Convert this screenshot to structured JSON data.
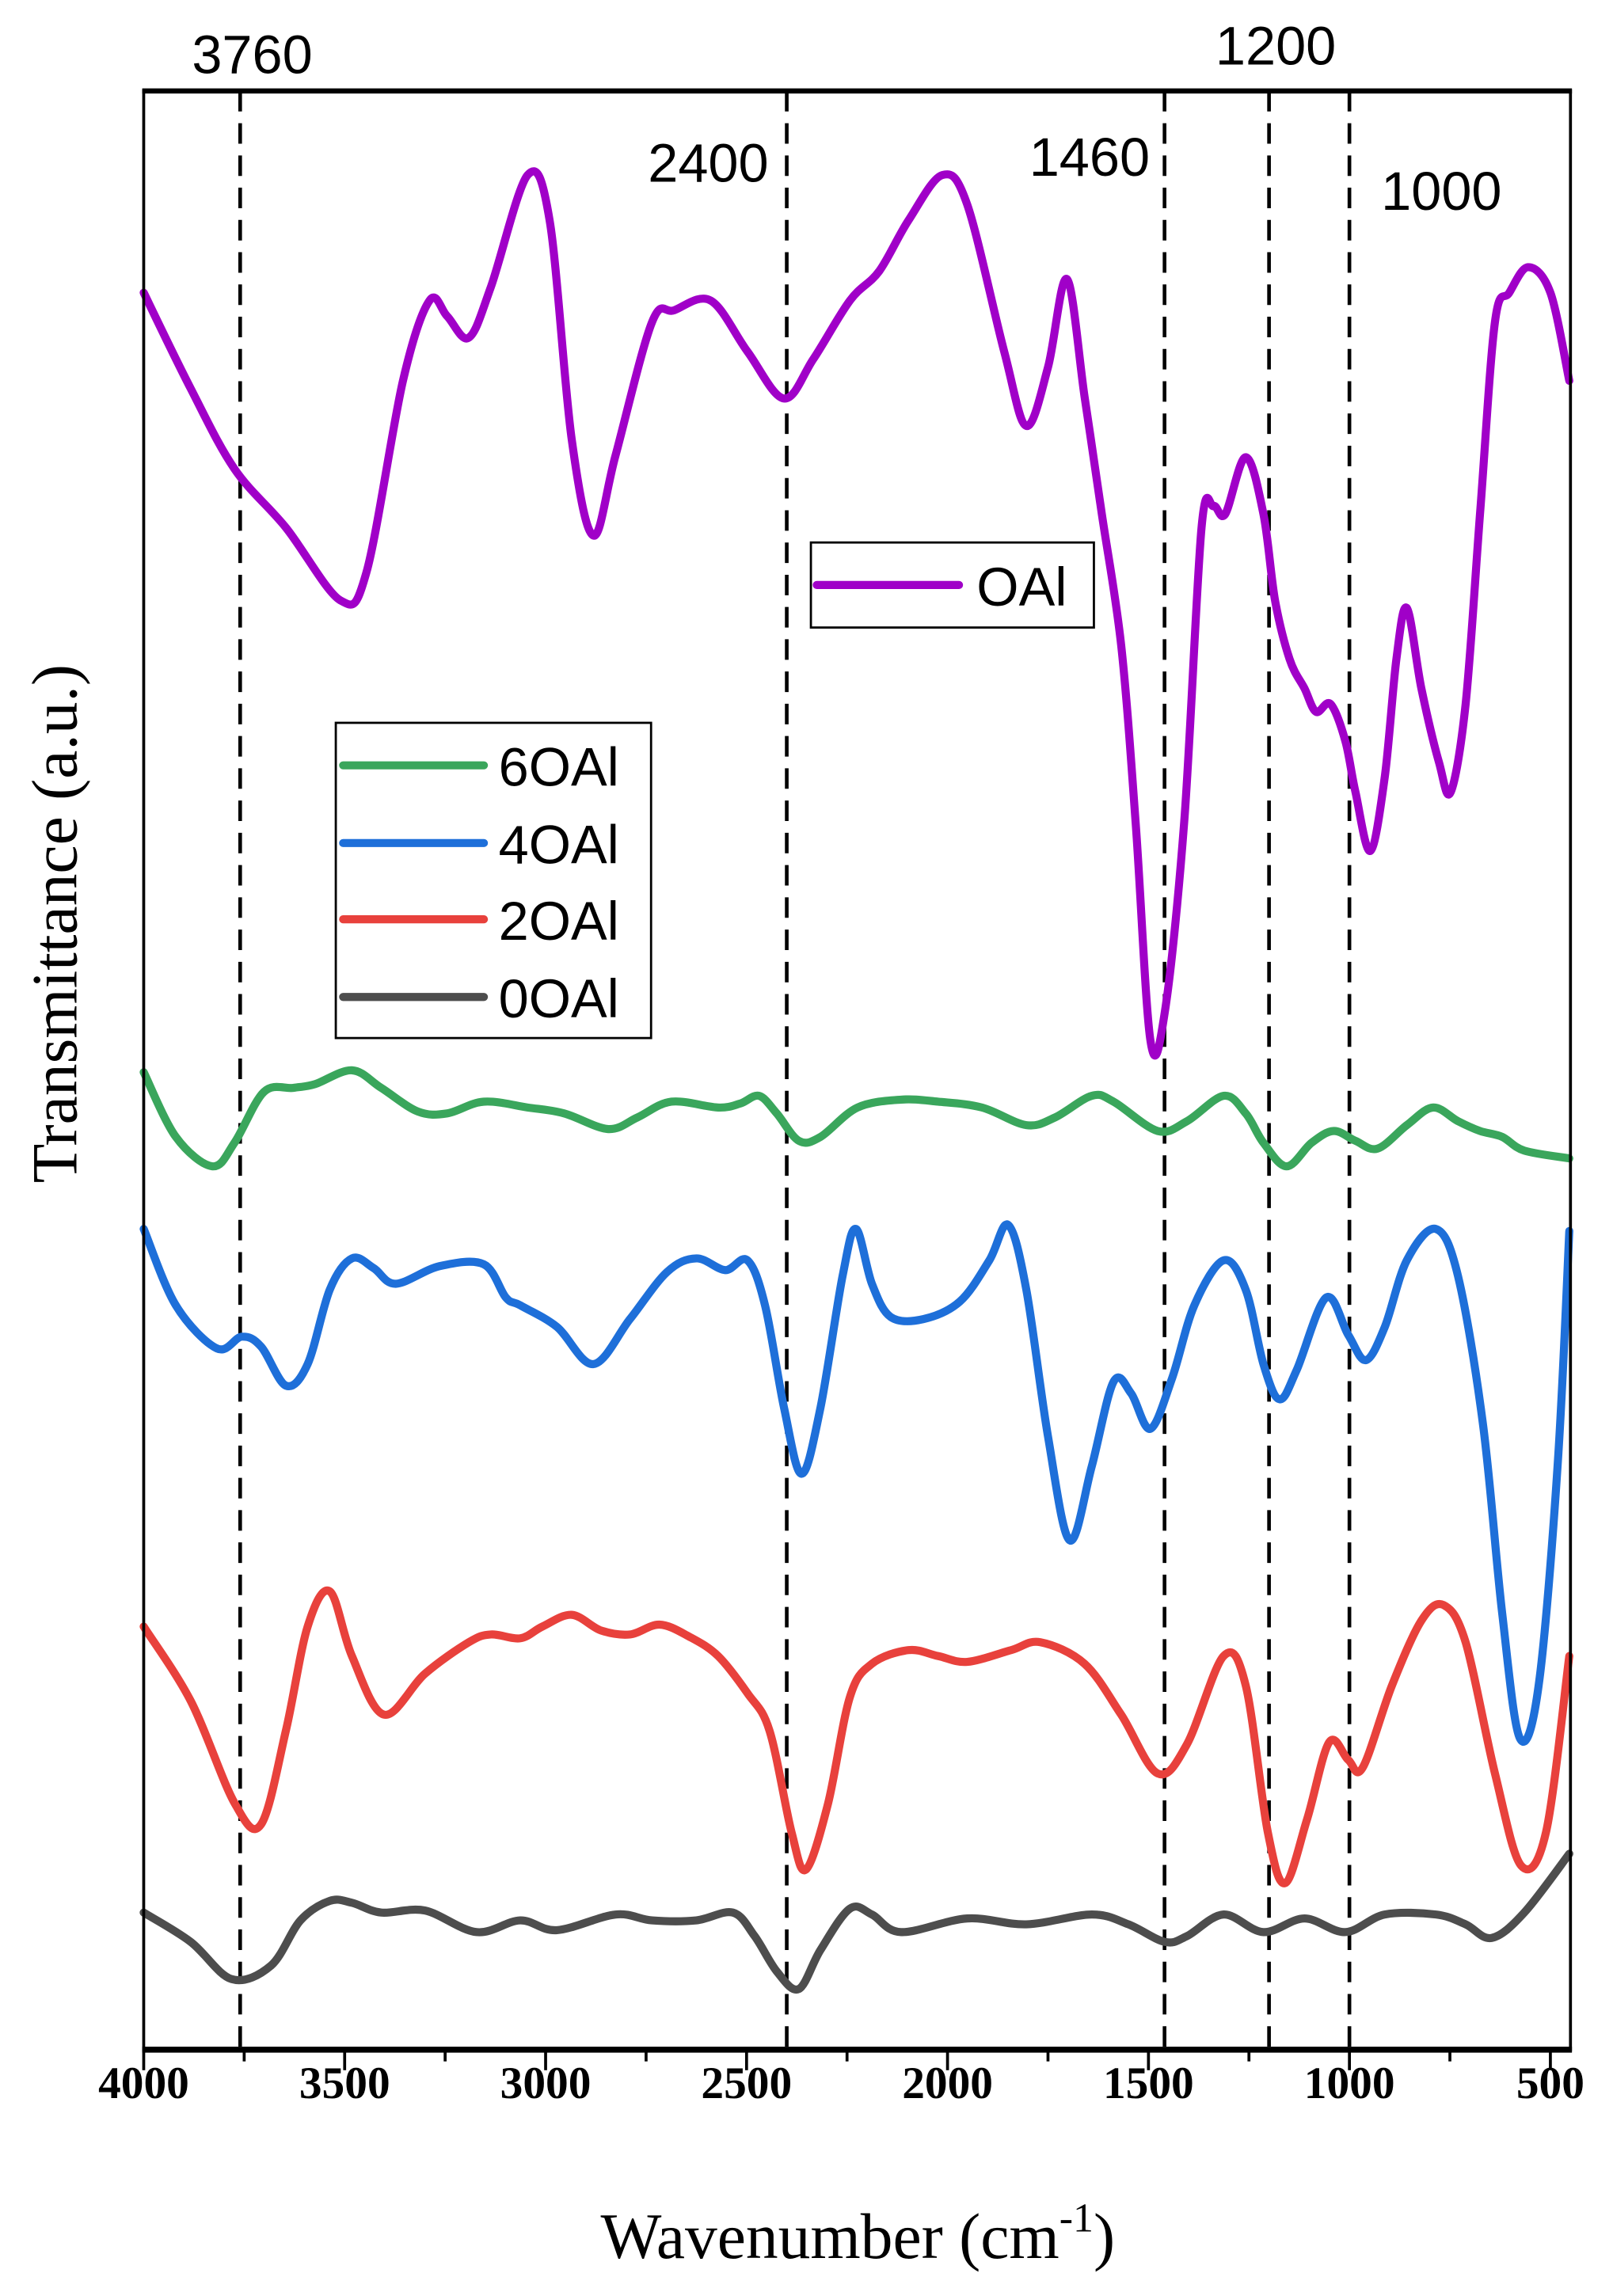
{
  "chart_data": {
    "type": "line",
    "title": "",
    "xlabel": "Wavenumber (cm",
    "xlabel_sup": "-1",
    "xlabel_close": ")",
    "ylabel": "Transmittance (a.u.)",
    "xlim": [
      4000,
      450
    ],
    "ylim": [
      0,
      100
    ],
    "x_reversed": true,
    "grid": false,
    "y_ticks_shown": false,
    "x_ticks": [
      4000,
      3500,
      3000,
      2500,
      2000,
      1500,
      1000,
      500
    ],
    "x_tick_labels": [
      "4000",
      "3500",
      "3000",
      "2500",
      "2000",
      "1500",
      "1000",
      "500"
    ],
    "reference_lines": [
      {
        "x": 3760,
        "label": "3760",
        "style": "dashed"
      },
      {
        "x": 2400,
        "label": "2400",
        "style": "dashed"
      },
      {
        "x": 1460,
        "label": "1460",
        "style": "dashed"
      },
      {
        "x": 1200,
        "label": "1200",
        "style": "dashed"
      },
      {
        "x": 1000,
        "label": "1000",
        "style": "dashed"
      }
    ],
    "legends": [
      {
        "placement": "center",
        "entries": [
          "OAl"
        ]
      },
      {
        "placement": "center-left",
        "entries": [
          "6OAl",
          "4OAl",
          "2OAl",
          "0OAl"
        ]
      }
    ],
    "series": [
      {
        "name": "OAl",
        "color": "#a000c8",
        "points": [
          [
            4000,
            89.7
          ],
          [
            3883,
            84.8
          ],
          [
            3774,
            80.7
          ],
          [
            3646,
            77.7
          ],
          [
            3511,
            74.0
          ],
          [
            3446,
            75.4
          ],
          [
            3355,
            85.2
          ],
          [
            3289,
            89.3
          ],
          [
            3245,
            88.5
          ],
          [
            3191,
            87.4
          ],
          [
            3136,
            90.0
          ],
          [
            3045,
            95.7
          ],
          [
            2990,
            93.4
          ],
          [
            2935,
            82.2
          ],
          [
            2881,
            77.3
          ],
          [
            2826,
            81.4
          ],
          [
            2735,
            88.2
          ],
          [
            2680,
            88.8
          ],
          [
            2589,
            89.3
          ],
          [
            2498,
            86.7
          ],
          [
            2407,
            84.3
          ],
          [
            2334,
            86.3
          ],
          [
            2243,
            89.3
          ],
          [
            2170,
            90.8
          ],
          [
            2097,
            93.4
          ],
          [
            2013,
            95.7
          ],
          [
            1951,
            94.2
          ],
          [
            1859,
            86.7
          ],
          [
            1804,
            82.9
          ],
          [
            1750,
            85.9
          ],
          [
            1703,
            90.4
          ],
          [
            1659,
            84.4
          ],
          [
            1616,
            78.4
          ],
          [
            1568,
            71.7
          ],
          [
            1532,
            62.7
          ],
          [
            1495,
            51.5
          ],
          [
            1459,
            53.0
          ],
          [
            1411,
            62.7
          ],
          [
            1368,
            77.7
          ],
          [
            1338,
            78.8
          ],
          [
            1309,
            78.4
          ],
          [
            1258,
            81.3
          ],
          [
            1214,
            78.4
          ],
          [
            1185,
            74.0
          ],
          [
            1149,
            71.0
          ],
          [
            1112,
            69.5
          ],
          [
            1083,
            68.3
          ],
          [
            1047,
            68.7
          ],
          [
            1010,
            66.8
          ],
          [
            985,
            64.2
          ],
          [
            948,
            61.2
          ],
          [
            912,
            65.0
          ],
          [
            883,
            71.0
          ],
          [
            857,
            73.6
          ],
          [
            821,
            69.5
          ],
          [
            777,
            65.7
          ],
          [
            748,
            64.2
          ],
          [
            711,
            68.7
          ],
          [
            675,
            78.4
          ],
          [
            638,
            88.2
          ],
          [
            602,
            89.7
          ],
          [
            555,
            91.0
          ],
          [
            500,
            89.7
          ],
          [
            453,
            85.2
          ]
        ]
      },
      {
        "name": "6OAl",
        "color": "#3aa65c",
        "points": [
          [
            4000,
            49.9
          ],
          [
            3920,
            46.6
          ],
          [
            3829,
            45.1
          ],
          [
            3774,
            46.3
          ],
          [
            3701,
            48.9
          ],
          [
            3628,
            49.1
          ],
          [
            3573,
            49.3
          ],
          [
            3482,
            50.0
          ],
          [
            3409,
            49.1
          ],
          [
            3318,
            47.9
          ],
          [
            3245,
            47.8
          ],
          [
            3154,
            48.4
          ],
          [
            3045,
            48.1
          ],
          [
            2954,
            47.8
          ],
          [
            2844,
            47.0
          ],
          [
            2771,
            47.6
          ],
          [
            2687,
            48.4
          ],
          [
            2571,
            48.1
          ],
          [
            2516,
            48.3
          ],
          [
            2469,
            48.7
          ],
          [
            2425,
            47.8
          ],
          [
            2370,
            46.4
          ],
          [
            2316,
            46.6
          ],
          [
            2224,
            48.1
          ],
          [
            2115,
            48.5
          ],
          [
            2024,
            48.4
          ],
          [
            1914,
            48.1
          ],
          [
            1804,
            47.2
          ],
          [
            1732,
            47.6
          ],
          [
            1641,
            48.7
          ],
          [
            1587,
            48.4
          ],
          [
            1477,
            46.9
          ],
          [
            1404,
            47.4
          ],
          [
            1313,
            48.7
          ],
          [
            1258,
            47.8
          ],
          [
            1214,
            46.3
          ],
          [
            1156,
            45.1
          ],
          [
            1094,
            46.3
          ],
          [
            1039,
            46.9
          ],
          [
            985,
            46.4
          ],
          [
            930,
            46.0
          ],
          [
            857,
            47.2
          ],
          [
            792,
            48.1
          ],
          [
            730,
            47.4
          ],
          [
            675,
            46.9
          ],
          [
            620,
            46.6
          ],
          [
            565,
            45.9
          ],
          [
            453,
            45.5
          ]
        ]
      },
      {
        "name": "4OAl",
        "color": "#1e6fd9",
        "points": [
          [
            4000,
            41.9
          ],
          [
            3920,
            38.0
          ],
          [
            3818,
            35.8
          ],
          [
            3756,
            36.4
          ],
          [
            3708,
            35.9
          ],
          [
            3646,
            33.9
          ],
          [
            3592,
            35.0
          ],
          [
            3537,
            38.8
          ],
          [
            3482,
            40.4
          ],
          [
            3428,
            39.9
          ],
          [
            3373,
            39.1
          ],
          [
            3264,
            40.0
          ],
          [
            3154,
            40.1
          ],
          [
            3099,
            38.4
          ],
          [
            3063,
            38.0
          ],
          [
            2972,
            36.9
          ],
          [
            2881,
            35.0
          ],
          [
            2790,
            37.3
          ],
          [
            2698,
            39.7
          ],
          [
            2625,
            40.4
          ],
          [
            2553,
            39.8
          ],
          [
            2498,
            40.3
          ],
          [
            2454,
            38.0
          ],
          [
            2407,
            32.8
          ],
          [
            2363,
            29.4
          ],
          [
            2316,
            32.8
          ],
          [
            2261,
            39.5
          ],
          [
            2228,
            41.9
          ],
          [
            2188,
            39.1
          ],
          [
            2141,
            37.4
          ],
          [
            2060,
            37.3
          ],
          [
            1969,
            38.2
          ],
          [
            1896,
            40.3
          ],
          [
            1849,
            42.1
          ],
          [
            1804,
            38.8
          ],
          [
            1750,
            31.3
          ],
          [
            1696,
            26.0
          ],
          [
            1641,
            29.8
          ],
          [
            1587,
            34.1
          ],
          [
            1543,
            33.5
          ],
          [
            1495,
            31.7
          ],
          [
            1441,
            34.3
          ],
          [
            1386,
            38.0
          ],
          [
            1313,
            40.3
          ],
          [
            1258,
            38.8
          ],
          [
            1214,
            35.0
          ],
          [
            1174,
            33.2
          ],
          [
            1131,
            34.7
          ],
          [
            1058,
            38.4
          ],
          [
            1003,
            36.5
          ],
          [
            959,
            35.2
          ],
          [
            912,
            36.9
          ],
          [
            857,
            40.3
          ],
          [
            785,
            41.9
          ],
          [
            730,
            39.5
          ],
          [
            668,
            32.0
          ],
          [
            620,
            22.3
          ],
          [
            576,
            15.9
          ],
          [
            529,
            18.6
          ],
          [
            482,
            29.8
          ],
          [
            453,
            41.8
          ]
        ]
      },
      {
        "name": "2OAl",
        "color": "#e8413c",
        "points": [
          [
            4000,
            21.6
          ],
          [
            3883,
            17.8
          ],
          [
            3774,
            12.6
          ],
          [
            3708,
            11.5
          ],
          [
            3646,
            16.3
          ],
          [
            3592,
            21.6
          ],
          [
            3537,
            23.4
          ],
          [
            3482,
            20.1
          ],
          [
            3402,
            17.1
          ],
          [
            3300,
            19.2
          ],
          [
            3191,
            20.8
          ],
          [
            3136,
            21.2
          ],
          [
            3063,
            21.0
          ],
          [
            3008,
            21.6
          ],
          [
            2935,
            22.2
          ],
          [
            2862,
            21.4
          ],
          [
            2790,
            21.2
          ],
          [
            2717,
            21.7
          ],
          [
            2644,
            21.1
          ],
          [
            2571,
            20.1
          ],
          [
            2498,
            18.2
          ],
          [
            2443,
            16.3
          ],
          [
            2388,
            11.1
          ],
          [
            2352,
            9.2
          ],
          [
            2297,
            12.6
          ],
          [
            2243,
            18.0
          ],
          [
            2188,
            19.7
          ],
          [
            2097,
            20.4
          ],
          [
            2024,
            20.1
          ],
          [
            1951,
            19.8
          ],
          [
            1842,
            20.4
          ],
          [
            1769,
            20.8
          ],
          [
            1659,
            19.7
          ],
          [
            1568,
            17.1
          ],
          [
            1477,
            14.1
          ],
          [
            1404,
            15.6
          ],
          [
            1313,
            20.1
          ],
          [
            1258,
            18.6
          ],
          [
            1203,
            11.1
          ],
          [
            1160,
            8.5
          ],
          [
            1105,
            11.8
          ],
          [
            1050,
            15.7
          ],
          [
            1003,
            14.8
          ],
          [
            967,
            14.4
          ],
          [
            894,
            18.6
          ],
          [
            821,
            21.9
          ],
          [
            766,
            22.7
          ],
          [
            711,
            20.8
          ],
          [
            638,
            14.1
          ],
          [
            573,
            9.4
          ],
          [
            511,
            11.1
          ],
          [
            453,
            20.1
          ]
        ]
      },
      {
        "name": "0OAl",
        "color": "#4d4d4d",
        "points": [
          [
            4000,
            7.0
          ],
          [
            3883,
            5.5
          ],
          [
            3781,
            3.6
          ],
          [
            3683,
            4.3
          ],
          [
            3610,
            6.6
          ],
          [
            3537,
            7.6
          ],
          [
            3482,
            7.5
          ],
          [
            3409,
            7.0
          ],
          [
            3300,
            7.1
          ],
          [
            3172,
            6.0
          ],
          [
            3063,
            6.6
          ],
          [
            2972,
            6.1
          ],
          [
            2826,
            6.9
          ],
          [
            2735,
            6.6
          ],
          [
            2625,
            6.6
          ],
          [
            2534,
            7.0
          ],
          [
            2480,
            5.8
          ],
          [
            2425,
            4.0
          ],
          [
            2370,
            3.1
          ],
          [
            2316,
            5.1
          ],
          [
            2243,
            7.2
          ],
          [
            2188,
            6.9
          ],
          [
            2115,
            6.0
          ],
          [
            1951,
            6.7
          ],
          [
            1804,
            6.4
          ],
          [
            1641,
            6.9
          ],
          [
            1550,
            6.4
          ],
          [
            1459,
            5.5
          ],
          [
            1404,
            5.8
          ],
          [
            1313,
            6.9
          ],
          [
            1214,
            6.0
          ],
          [
            1112,
            6.7
          ],
          [
            1010,
            6.0
          ],
          [
            912,
            6.9
          ],
          [
            785,
            6.9
          ],
          [
            711,
            6.4
          ],
          [
            646,
            5.7
          ],
          [
            565,
            7.0
          ],
          [
            453,
            10.0
          ]
        ]
      }
    ]
  }
}
